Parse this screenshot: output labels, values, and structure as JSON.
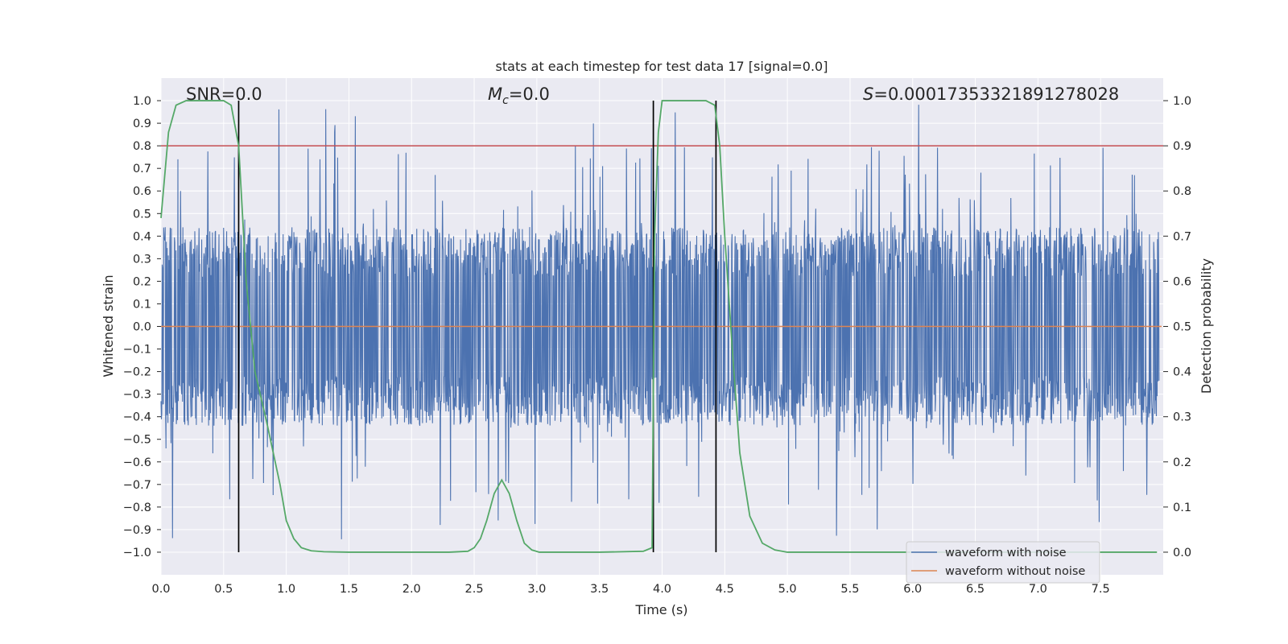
{
  "chart_data": {
    "type": "line",
    "title": "stats at each timestep for test data 17 [signal=0.0]",
    "xlabel": "Time (s)",
    "ylabel": "Whitened strain",
    "y2label": "Detection probability",
    "xlim": [
      0.0,
      8.0
    ],
    "ylim": [
      -1.1,
      1.1
    ],
    "y2lim": [
      -0.05,
      1.05
    ],
    "x_ticks": [
      "0.0",
      "0.5",
      "1.0",
      "1.5",
      "2.0",
      "2.5",
      "3.0",
      "3.5",
      "4.0",
      "4.5",
      "5.0",
      "5.5",
      "6.0",
      "6.5",
      "7.0",
      "7.5"
    ],
    "y_ticks": [
      "1.0",
      "0.9",
      "0.8",
      "0.7",
      "0.6",
      "0.5",
      "0.4",
      "0.3",
      "0.2",
      "0.1",
      "0.0",
      "−0.1",
      "−0.2",
      "−0.3",
      "−0.4",
      "−0.5",
      "−0.6",
      "−0.7",
      "−0.8",
      "−0.9",
      "−1.0"
    ],
    "y2_ticks": [
      "1.0",
      "0.9",
      "0.8",
      "0.7",
      "0.6",
      "0.5",
      "0.4",
      "0.3",
      "0.2",
      "0.1",
      "0.0"
    ],
    "grid": true,
    "legend_position": "lower-right",
    "annotations": {
      "snr": "SNR=0.0",
      "mc_symbol": "M",
      "mc_subscript": "c",
      "mc_value": "=0.0",
      "s_symbol": "S",
      "s_value": "=0.00017353321891278028"
    },
    "threshold_y2": 0.9,
    "vertical_lines_x": [
      0.62,
      3.93,
      4.43
    ],
    "series": [
      {
        "name": "waveform with noise",
        "color": "#4c72b0",
        "noise_envelope": {
          "typical_amplitude": 0.4,
          "peak_positive": 1.0,
          "peak_negative": -1.0
        }
      },
      {
        "name": "waveform without noise",
        "color": "#dd8452",
        "y_constant": 0.0
      },
      {
        "name": "",
        "color": "#55a868",
        "axis": "right",
        "x": [
          0.0,
          0.06,
          0.12,
          0.2,
          0.3,
          0.4,
          0.5,
          0.56,
          0.62,
          0.68,
          0.75,
          0.85,
          0.95,
          1.0,
          1.06,
          1.12,
          1.2,
          1.3,
          1.5,
          2.0,
          2.3,
          2.45,
          2.5,
          2.55,
          2.6,
          2.66,
          2.72,
          2.78,
          2.84,
          2.9,
          2.96,
          3.02,
          3.1,
          3.5,
          3.85,
          3.92,
          3.94,
          3.97,
          4.0,
          4.06,
          4.2,
          4.35,
          4.42,
          4.46,
          4.5,
          4.56,
          4.62,
          4.7,
          4.8,
          4.9,
          5.0,
          6.0,
          7.0,
          7.95
        ],
        "y": [
          0.74,
          0.93,
          0.99,
          1.0,
          1.0,
          1.0,
          1.0,
          0.99,
          0.9,
          0.6,
          0.4,
          0.28,
          0.15,
          0.07,
          0.03,
          0.01,
          0.003,
          0.001,
          0.0,
          0.0,
          0.0,
          0.002,
          0.01,
          0.03,
          0.07,
          0.13,
          0.16,
          0.13,
          0.07,
          0.02,
          0.005,
          0.0,
          0.0,
          0.0,
          0.002,
          0.01,
          0.7,
          0.93,
          1.0,
          1.0,
          1.0,
          1.0,
          0.99,
          0.9,
          0.7,
          0.45,
          0.22,
          0.08,
          0.02,
          0.005,
          0.0,
          0.0,
          0.0,
          0.0
        ]
      }
    ]
  }
}
